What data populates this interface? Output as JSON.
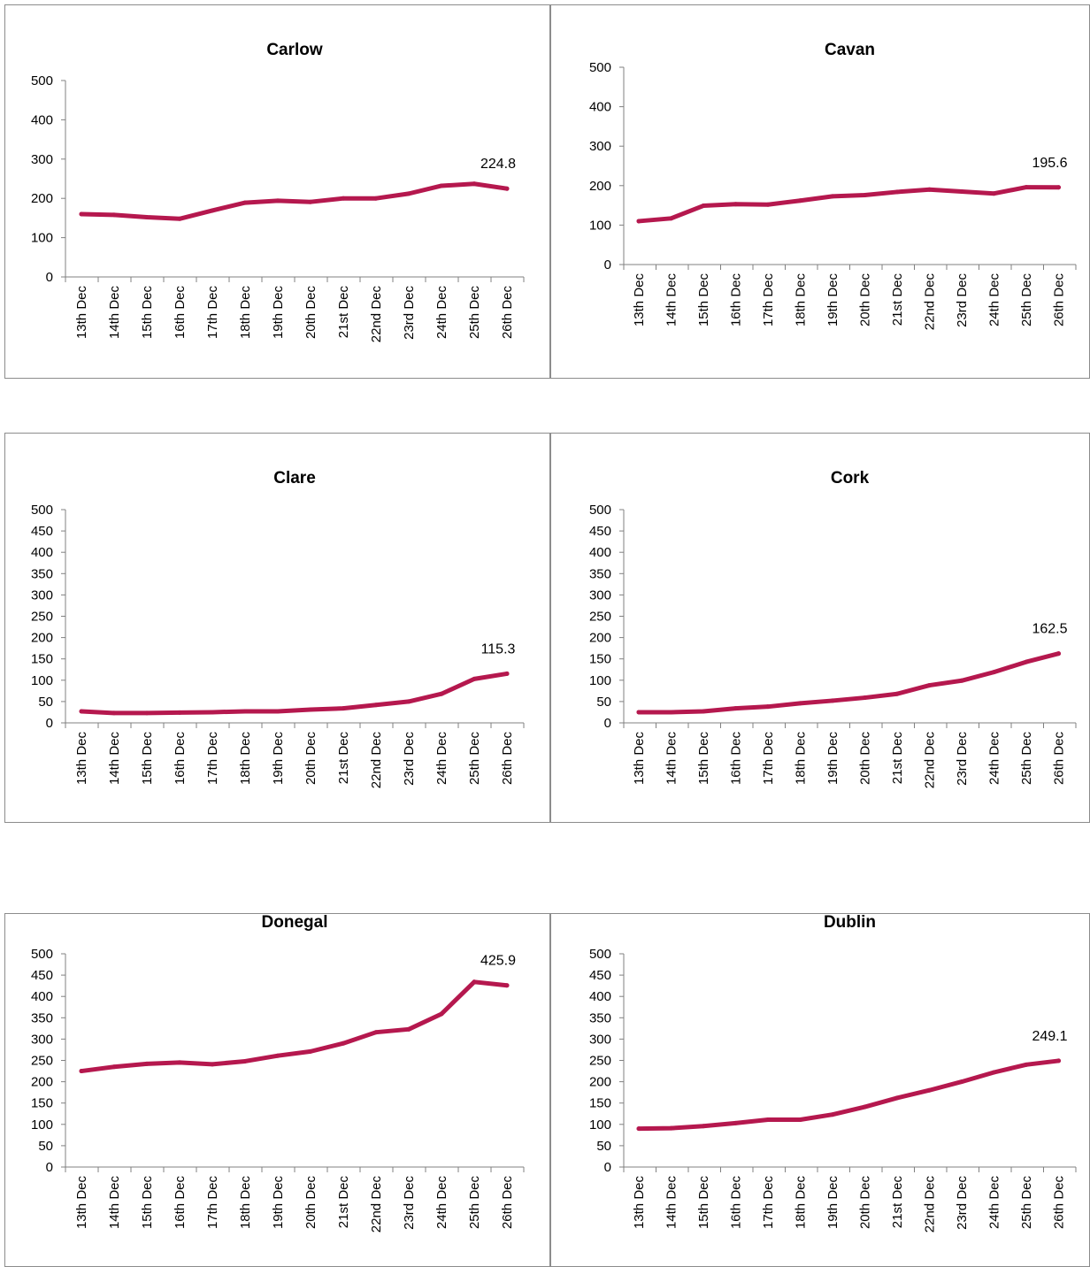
{
  "style": {
    "line_color": "#b5184e",
    "axis_color": "#808080",
    "border_color": "#8c8c8c"
  },
  "chart_data": [
    {
      "type": "line",
      "title": "Carlow",
      "categories": [
        "13th Dec",
        "14th Dec",
        "15th Dec",
        "16th Dec",
        "17th Dec",
        "18th Dec",
        "19th Dec",
        "20th Dec",
        "21st Dec",
        "22nd Dec",
        "23rd Dec",
        "24th Dec",
        "25th Dec",
        "26th Dec"
      ],
      "values": [
        160,
        158,
        152,
        148,
        169,
        189,
        194,
        191,
        200,
        200,
        212,
        232,
        237,
        224.8
      ],
      "ylim": [
        0,
        500
      ],
      "ytick_step": 100,
      "data_labels": [
        {
          "index": 13,
          "text": "224.8"
        }
      ],
      "legend": "none",
      "grid": false
    },
    {
      "type": "line",
      "title": "Cavan",
      "categories": [
        "13th Dec",
        "14th Dec",
        "15th Dec",
        "16th Dec",
        "17th Dec",
        "18th Dec",
        "19th Dec",
        "20th Dec",
        "21st Dec",
        "22nd Dec",
        "23rd Dec",
        "24th Dec",
        "25th Dec",
        "26th Dec"
      ],
      "values": [
        110,
        117,
        149,
        153,
        152,
        162,
        173,
        176,
        184,
        190,
        185,
        180,
        196,
        195.6
      ],
      "ylim": [
        0,
        500
      ],
      "ytick_step": 100,
      "data_labels": [
        {
          "index": 13,
          "text": "195.6"
        }
      ],
      "legend": "none",
      "grid": false
    },
    {
      "type": "line",
      "title": "Clare",
      "categories": [
        "13th Dec",
        "14th Dec",
        "15th Dec",
        "16th Dec",
        "17th Dec",
        "18th Dec",
        "19th Dec",
        "20th Dec",
        "21st Dec",
        "22nd Dec",
        "23rd Dec",
        "24th Dec",
        "25th Dec",
        "26th Dec"
      ],
      "values": [
        27,
        23,
        23,
        24,
        25,
        27,
        27,
        31,
        34,
        42,
        50,
        68,
        103,
        115.3
      ],
      "ylim": [
        0,
        500
      ],
      "ytick_step": 50,
      "data_labels": [
        {
          "index": 13,
          "text": "115.3"
        }
      ],
      "legend": "none",
      "grid": false
    },
    {
      "type": "line",
      "title": "Cork",
      "categories": [
        "13th Dec",
        "14th Dec",
        "15th Dec",
        "16th Dec",
        "17th Dec",
        "18th Dec",
        "19th Dec",
        "20th Dec",
        "21st Dec",
        "22nd Dec",
        "23rd Dec",
        "24th Dec",
        "25th Dec",
        "26th Dec"
      ],
      "values": [
        25,
        25,
        27,
        34,
        38,
        46,
        52,
        59,
        68,
        88,
        99,
        119,
        143,
        162.5
      ],
      "ylim": [
        0,
        500
      ],
      "ytick_step": 50,
      "data_labels": [
        {
          "index": 13,
          "text": "162.5"
        }
      ],
      "legend": "none",
      "grid": false
    },
    {
      "type": "line",
      "title": "Donegal",
      "categories": [
        "13th Dec",
        "14th Dec",
        "15th Dec",
        "16th Dec",
        "17th Dec",
        "18th Dec",
        "19th Dec",
        "20th Dec",
        "21st Dec",
        "22nd Dec",
        "23rd Dec",
        "24th Dec",
        "25th Dec",
        "26th Dec"
      ],
      "values": [
        225,
        235,
        242,
        245,
        241,
        248,
        261,
        271,
        290,
        316,
        323,
        359,
        434,
        425.9
      ],
      "ylim": [
        0,
        500
      ],
      "ytick_step": 50,
      "data_labels": [
        {
          "index": 13,
          "text": "425.9"
        }
      ],
      "legend": "none",
      "grid": false
    },
    {
      "type": "line",
      "title": "Dublin",
      "categories": [
        "13th Dec",
        "14th Dec",
        "15th Dec",
        "16th Dec",
        "17th Dec",
        "18th Dec",
        "19th Dec",
        "20th Dec",
        "21st Dec",
        "22nd Dec",
        "23rd Dec",
        "24th Dec",
        "25th Dec",
        "26th Dec"
      ],
      "values": [
        90,
        91,
        96,
        103,
        111,
        111,
        123,
        141,
        162,
        180,
        200,
        222,
        240,
        249.1
      ],
      "ylim": [
        0,
        500
      ],
      "ytick_step": 50,
      "data_labels": [
        {
          "index": 13,
          "text": "249.1"
        }
      ],
      "legend": "none",
      "grid": false
    }
  ]
}
